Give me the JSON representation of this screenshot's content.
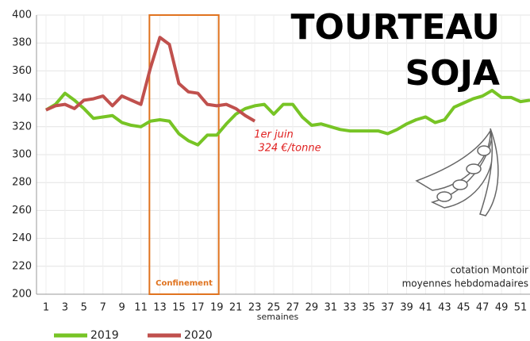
{
  "chart_data": {
    "type": "line",
    "title": [
      "TOURTEAU",
      "SOJA"
    ],
    "x_label": "semaines",
    "x": [
      1,
      2,
      3,
      4,
      5,
      6,
      7,
      8,
      9,
      10,
      11,
      12,
      13,
      14,
      15,
      16,
      17,
      18,
      19,
      20,
      21,
      22,
      23,
      24,
      25,
      26,
      27,
      28,
      29,
      30,
      31,
      32,
      33,
      34,
      35,
      36,
      37,
      38,
      39,
      40,
      41,
      42,
      43,
      44,
      45,
      46,
      47,
      48,
      49,
      50,
      51,
      52
    ],
    "series": [
      {
        "name": "2019",
        "color": "#77c425",
        "values": [
          332,
          336,
          344,
          339,
          333,
          326,
          327,
          328,
          323,
          321,
          320,
          324,
          325,
          324,
          315,
          310,
          307,
          314,
          314,
          322,
          329,
          333,
          335,
          336,
          329,
          336,
          336,
          327,
          321,
          322,
          320,
          318,
          317,
          317,
          317,
          317,
          315,
          318,
          322,
          325,
          327,
          323,
          325,
          334,
          337,
          340,
          342,
          346,
          341,
          341,
          338,
          339
        ]
      },
      {
        "name": "2020",
        "color": "#c0504d",
        "values": [
          332,
          335,
          336,
          333,
          339,
          340,
          342,
          335,
          342,
          339,
          336,
          362,
          384,
          379,
          351,
          345,
          344,
          336,
          335,
          336,
          333,
          328,
          324,
          null,
          null,
          null,
          null,
          null,
          null,
          null,
          null,
          null,
          null,
          null,
          null,
          null,
          null,
          null,
          null,
          null,
          null,
          null,
          null,
          null,
          null,
          null,
          null,
          null,
          null,
          null,
          null,
          null
        ]
      }
    ],
    "xlim": [
      0,
      52
    ],
    "xticks": [
      1,
      3,
      5,
      7,
      9,
      11,
      13,
      15,
      17,
      19,
      21,
      23,
      25,
      27,
      29,
      31,
      33,
      35,
      37,
      39,
      41,
      43,
      45,
      47,
      49,
      51
    ],
    "ylim": [
      200,
      400
    ],
    "yticks": [
      200,
      220,
      240,
      260,
      280,
      300,
      320,
      340,
      360,
      380,
      400
    ],
    "grid": true,
    "legend": "bottom",
    "annotations": [
      {
        "text": "Confinement",
        "x": [
          11.9,
          19.2
        ],
        "color": "#e0731f"
      },
      {
        "text": [
          "1er juin",
          "324 €/tonne"
        ],
        "color": "#e02020"
      }
    ],
    "source": [
      "cotation Montoir",
      "moyennes hebdomadaires"
    ]
  }
}
